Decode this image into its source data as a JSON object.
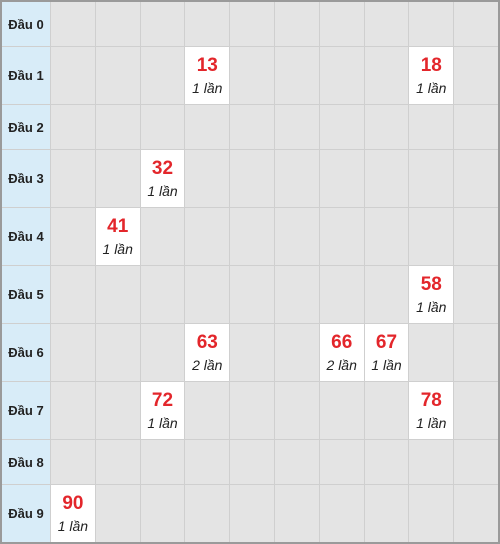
{
  "table": {
    "rows": [
      {
        "label": "Đầu 0",
        "cells": [
          null,
          null,
          null,
          null,
          null,
          null,
          null,
          null,
          null,
          null
        ]
      },
      {
        "label": "Đầu 1",
        "cells": [
          null,
          null,
          null,
          {
            "number": "13",
            "count": "1 lần"
          },
          null,
          null,
          null,
          null,
          {
            "number": "18",
            "count": "1 lần"
          },
          null
        ]
      },
      {
        "label": "Đầu 2",
        "cells": [
          null,
          null,
          null,
          null,
          null,
          null,
          null,
          null,
          null,
          null
        ]
      },
      {
        "label": "Đầu 3",
        "cells": [
          null,
          null,
          {
            "number": "32",
            "count": "1 lần"
          },
          null,
          null,
          null,
          null,
          null,
          null,
          null
        ]
      },
      {
        "label": "Đầu 4",
        "cells": [
          null,
          {
            "number": "41",
            "count": "1 lần"
          },
          null,
          null,
          null,
          null,
          null,
          null,
          null,
          null
        ]
      },
      {
        "label": "Đầu 5",
        "cells": [
          null,
          null,
          null,
          null,
          null,
          null,
          null,
          null,
          {
            "number": "58",
            "count": "1 lần"
          },
          null
        ]
      },
      {
        "label": "Đầu 6",
        "cells": [
          null,
          null,
          null,
          {
            "number": "63",
            "count": "2 lần"
          },
          null,
          null,
          {
            "number": "66",
            "count": "2 lần"
          },
          {
            "number": "67",
            "count": "1 lần"
          },
          null,
          null
        ]
      },
      {
        "label": "Đầu 7",
        "cells": [
          null,
          null,
          {
            "number": "72",
            "count": "1 lần"
          },
          null,
          null,
          null,
          null,
          null,
          {
            "number": "78",
            "count": "1 lần"
          },
          null
        ]
      },
      {
        "label": "Đầu 8",
        "cells": [
          null,
          null,
          null,
          null,
          null,
          null,
          null,
          null,
          null,
          null
        ]
      },
      {
        "label": "Đầu 9",
        "cells": [
          {
            "number": "90",
            "count": "1 lần"
          },
          null,
          null,
          null,
          null,
          null,
          null,
          null,
          null,
          null
        ]
      }
    ]
  }
}
